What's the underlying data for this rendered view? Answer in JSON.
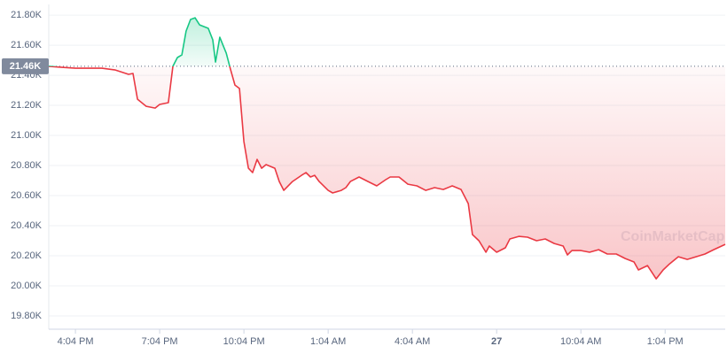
{
  "chart_data": {
    "type": "line",
    "watermark": "CoinMarketCap",
    "x": [
      0,
      0.47,
      0.95,
      1.42,
      1.89,
      2.37,
      2.84,
      3.0,
      3.16,
      3.47,
      3.79,
      3.95,
      4.26,
      4.42,
      4.58,
      4.74,
      4.89,
      5.05,
      5.21,
      5.37,
      5.68,
      5.84,
      5.94,
      6.09,
      6.32,
      6.47,
      6.63,
      6.79,
      6.95,
      7.11,
      7.26,
      7.42,
      7.58,
      7.74,
      8.05,
      8.21,
      8.37,
      8.68,
      9.0,
      9.16,
      9.32,
      9.47,
      9.63,
      9.95,
      10.11,
      10.42,
      10.58,
      10.74,
      11.05,
      11.37,
      11.68,
      12.0,
      12.16,
      12.47,
      12.79,
      13.11,
      13.42,
      13.74,
      14.05,
      14.37,
      14.68,
      14.94,
      15.09,
      15.32,
      15.57,
      15.69,
      15.95,
      16.26,
      16.42,
      16.74,
      17.05,
      17.37,
      17.68,
      18.0,
      18.32,
      18.47,
      18.63,
      18.95,
      19.26,
      19.58,
      19.89,
      20.21,
      20.53,
      20.84,
      21.0,
      21.32,
      21.63,
      21.88,
      22.11,
      22.42,
      22.74,
      23.05,
      23.37,
      23.68,
      24.09
    ],
    "series": [
      {
        "color": "#ea3943",
        "up_color": "#16c784",
        "values": [
          21460,
          21453,
          21447,
          21447,
          21447,
          21435,
          21406,
          21412,
          21241,
          21194,
          21182,
          21206,
          21218,
          21460,
          21518,
          21535,
          21694,
          21771,
          21782,
          21735,
          21712,
          21635,
          21488,
          21653,
          21547,
          21441,
          21335,
          21312,
          20959,
          20782,
          20753,
          20841,
          20782,
          20806,
          20782,
          20694,
          20635,
          20694,
          20735,
          20753,
          20724,
          20735,
          20694,
          20635,
          20618,
          20635,
          20653,
          20694,
          20724,
          20694,
          20665,
          20706,
          20724,
          20724,
          20676,
          20665,
          20635,
          20653,
          20641,
          20665,
          20641,
          20547,
          20341,
          20300,
          20224,
          20265,
          20224,
          20253,
          20312,
          20329,
          20324,
          20300,
          20312,
          20282,
          20265,
          20206,
          20235,
          20235,
          20224,
          20241,
          20212,
          20212,
          20182,
          20159,
          20106,
          20135,
          20047,
          20106,
          20147,
          20194,
          20176,
          20194,
          20212,
          20241,
          20276
        ]
      }
    ],
    "reference": {
      "value": 21460,
      "label": "21.46K"
    },
    "xlim": [
      0,
      24.09
    ],
    "xticks": [
      {
        "value": 0.95,
        "label": "4:04 PM"
      },
      {
        "value": 3.95,
        "label": "7:04 PM"
      },
      {
        "value": 6.95,
        "label": "10:04 PM"
      },
      {
        "value": 9.95,
        "label": "1:04 AM"
      },
      {
        "value": 12.95,
        "label": "4:04 AM"
      },
      {
        "value": 15.95,
        "label": "27"
      },
      {
        "value": 18.95,
        "label": "10:04 AM"
      },
      {
        "value": 21.95,
        "label": "1:04 PM"
      }
    ],
    "ylim": [
      19712,
      21871
    ],
    "yticks": [
      {
        "value": 21800,
        "label": "21.80K"
      },
      {
        "value": 21600,
        "label": "21.60K"
      },
      {
        "value": 21400,
        "label": "21.40K"
      },
      {
        "value": 21200,
        "label": "21.20K"
      },
      {
        "value": 21000,
        "label": "21.00K"
      },
      {
        "value": 20800,
        "label": "20.80K"
      },
      {
        "value": 20600,
        "label": "20.60K"
      },
      {
        "value": 20400,
        "label": "20.40K"
      },
      {
        "value": 20200,
        "label": "20.20K"
      },
      {
        "value": 20000,
        "label": "20.00K"
      },
      {
        "value": 19800,
        "label": "19.80K"
      }
    ],
    "grid": true
  }
}
